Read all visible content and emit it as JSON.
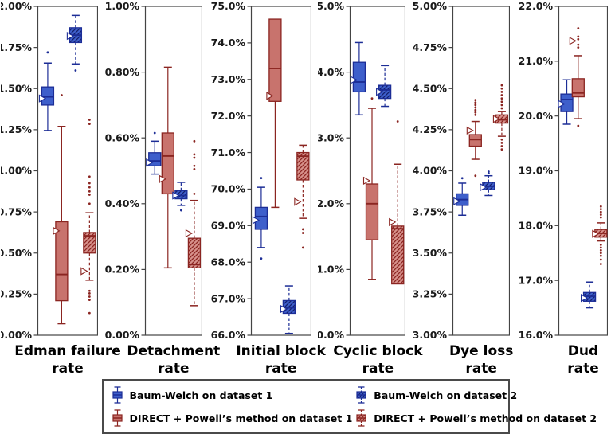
{
  "figure": {
    "background": "#ffffff",
    "axis_color": "#444444",
    "tick_label_color": "#1a1a1a"
  },
  "chart_data": {
    "type": "boxplot",
    "legend_position": "bottom",
    "grid": false,
    "styles": {
      "bw1": {
        "name": "Baum-Welch on dataset 1",
        "fill": "#3E5FCB",
        "edge": "#1C2D96",
        "hatch": false,
        "dashed": false
      },
      "dp1": {
        "name": "DIRECT + Powell’s method on dataset 1",
        "fill": "#C8736D",
        "edge": "#8B2521",
        "hatch": false,
        "dashed": false
      },
      "bw2": {
        "name": "Baum-Welch on dataset 2",
        "fill": "#3E5FCB",
        "edge": "#1C2D96",
        "hatch": true,
        "hatch_color": "#141F6B",
        "dashed": true
      },
      "dp2": {
        "name": "DIRECT + Powell’s method on dataset 2",
        "fill": "#D6908A",
        "edge": "#8B2521",
        "hatch": true,
        "hatch_color": "#8B2521",
        "dashed": true
      }
    },
    "legend": [
      {
        "style": "bw1",
        "label": "Baum-Welch on dataset 1"
      },
      {
        "style": "bw2",
        "label": "Baum-Welch on dataset 2"
      },
      {
        "style": "dp1",
        "label": "DIRECT + Powell’s method on dataset 1"
      },
      {
        "style": "dp2",
        "label": "DIRECT + Powell’s method on dataset 2"
      }
    ],
    "panels": [
      {
        "title": [
          "Edman failure",
          "rate"
        ],
        "ylim": [
          0.0,
          2.0
        ],
        "ytick_step": 0.25,
        "ytick_decimals": 2,
        "boxes": [
          {
            "series": "bw1",
            "whislo": 1.245,
            "q1": 1.4,
            "med": 1.45,
            "q3": 1.51,
            "whishi": 1.655,
            "mean": 1.44,
            "fliers": [
              1.72
            ]
          },
          {
            "series": "dp1",
            "whislo": 0.07,
            "q1": 0.21,
            "med": 0.37,
            "q3": 0.69,
            "whishi": 1.27,
            "mean": 0.635,
            "fliers": [
              1.46
            ]
          },
          {
            "series": "bw2",
            "whislo": 1.65,
            "q1": 1.78,
            "med": 1.825,
            "q3": 1.87,
            "whishi": 1.945,
            "mean": 1.82,
            "fliers": [
              1.61
            ]
          },
          {
            "series": "dp2",
            "whislo": 0.335,
            "q1": 0.5,
            "med": 0.605,
            "q3": 0.625,
            "whishi": 0.745,
            "mean": 0.39,
            "fliers": [
              1.31,
              1.285,
              0.965,
              0.925,
              0.9,
              0.875,
              0.855,
              0.8,
              0.27,
              0.255,
              0.235,
              0.215,
              0.135
            ]
          }
        ]
      },
      {
        "title": [
          "Detachment",
          "rate"
        ],
        "ylim": [
          0.0,
          1.0
        ],
        "ytick_step": 0.2,
        "ytick_decimals": 2,
        "boxes": [
          {
            "series": "bw1",
            "whislo": 0.49,
            "q1": 0.515,
            "med": 0.53,
            "q3": 0.555,
            "whishi": 0.59,
            "mean": 0.525,
            "fliers": [
              0.615
            ]
          },
          {
            "series": "dp1",
            "whislo": 0.205,
            "q1": 0.43,
            "med": 0.545,
            "q3": 0.615,
            "whishi": 0.815,
            "mean": 0.475,
            "fliers": []
          },
          {
            "series": "bw2",
            "whislo": 0.395,
            "q1": 0.415,
            "med": 0.425,
            "q3": 0.44,
            "whishi": 0.465,
            "mean": 0.425,
            "fliers": [
              0.38
            ]
          },
          {
            "series": "dp2",
            "whislo": 0.09,
            "q1": 0.205,
            "med": 0.215,
            "q3": 0.295,
            "whishi": 0.41,
            "mean": 0.31,
            "fliers": [
              0.59,
              0.55,
              0.54,
              0.515,
              0.505,
              0.43
            ]
          }
        ]
      },
      {
        "title": [
          "Initial block",
          "rate"
        ],
        "ylim": [
          66.0,
          75.0
        ],
        "ytick_step": 1.0,
        "ytick_decimals": 1,
        "boxes": [
          {
            "series": "bw1",
            "whislo": 68.4,
            "q1": 68.9,
            "med": 69.25,
            "q3": 69.5,
            "whishi": 70.05,
            "mean": 69.15,
            "fliers": [
              70.3,
              68.1
            ]
          },
          {
            "series": "dp1",
            "whislo": 69.5,
            "q1": 72.4,
            "med": 73.3,
            "q3": 74.65,
            "whishi": 74.65,
            "mean": 72.55,
            "fliers": []
          },
          {
            "series": "bw2",
            "whislo": 66.05,
            "q1": 66.6,
            "med": 66.75,
            "q3": 66.95,
            "whishi": 67.35,
            "mean": 66.72,
            "fliers": []
          },
          {
            "series": "dp2",
            "whislo": 69.2,
            "q1": 70.25,
            "med": 70.9,
            "q3": 71.0,
            "whishi": 71.2,
            "mean": 69.65,
            "fliers": [
              68.9,
              68.8,
              68.4
            ]
          }
        ]
      },
      {
        "title": [
          "Cyclic block",
          "rate"
        ],
        "ylim": [
          0.0,
          5.0
        ],
        "ytick_step": 1.0,
        "ytick_decimals": 1,
        "boxes": [
          {
            "series": "bw1",
            "whislo": 3.35,
            "q1": 3.7,
            "med": 3.85,
            "q3": 4.15,
            "whishi": 4.45,
            "mean": 3.88,
            "fliers": []
          },
          {
            "series": "dp1",
            "whislo": 0.85,
            "q1": 1.45,
            "med": 2.0,
            "q3": 2.3,
            "whishi": 3.45,
            "mean": 2.35,
            "fliers": [
              3.6
            ]
          },
          {
            "series": "bw2",
            "whislo": 3.48,
            "q1": 3.6,
            "med": 3.73,
            "q3": 3.8,
            "whishi": 4.1,
            "mean": 3.7,
            "fliers": []
          },
          {
            "series": "dp2",
            "whislo": 0.78,
            "q1": 0.78,
            "med": 1.62,
            "q3": 1.66,
            "whishi": 2.6,
            "mean": 1.72,
            "fliers": [
              3.25
            ]
          }
        ]
      },
      {
        "title": [
          "Dye loss",
          "rate"
        ],
        "ylim": [
          3.0,
          5.0
        ],
        "ytick_step": 0.25,
        "ytick_decimals": 2,
        "boxes": [
          {
            "series": "bw1",
            "whislo": 3.73,
            "q1": 3.79,
            "med": 3.825,
            "q3": 3.86,
            "whishi": 3.925,
            "mean": 3.815,
            "fliers": [
              3.955
            ]
          },
          {
            "series": "dp1",
            "whislo": 4.07,
            "q1": 4.15,
            "med": 4.19,
            "q3": 4.22,
            "whishi": 4.3,
            "mean": 4.245,
            "fliers": [
              4.43,
              4.415,
              4.4,
              4.385,
              4.37,
              4.355,
              4.34,
              3.97
            ]
          },
          {
            "series": "bw2",
            "whislo": 3.85,
            "q1": 3.885,
            "med": 3.905,
            "q3": 3.93,
            "whishi": 3.97,
            "mean": 3.9,
            "fliers": [
              3.995,
              3.985
            ]
          },
          {
            "series": "dp2",
            "whislo": 4.21,
            "q1": 4.29,
            "med": 4.31,
            "q3": 4.34,
            "whishi": 4.36,
            "mean": 4.315,
            "fliers": [
              4.52,
              4.5,
              4.48,
              4.46,
              4.44,
              4.42,
              4.4,
              4.38,
              4.19,
              4.17,
              4.15,
              4.13
            ]
          }
        ]
      },
      {
        "title": [
          "Dud",
          "rate"
        ],
        "ylim": [
          16.0,
          22.0
        ],
        "ytick_step": 1.0,
        "ytick_decimals": 1,
        "boxes": [
          {
            "series": "bw1",
            "whislo": 19.85,
            "q1": 20.08,
            "med": 20.3,
            "q3": 20.4,
            "whishi": 20.66,
            "mean": 20.22,
            "fliers": []
          },
          {
            "series": "dp1",
            "whislo": 19.95,
            "q1": 20.35,
            "med": 20.42,
            "q3": 20.68,
            "whishi": 21.1,
            "mean": 21.37,
            "fliers": [
              21.6,
              21.45,
              21.4,
              21.3,
              21.25,
              19.82
            ]
          },
          {
            "series": "bw2",
            "whislo": 16.5,
            "q1": 16.62,
            "med": 16.71,
            "q3": 16.78,
            "whishi": 16.97,
            "mean": 16.68,
            "fliers": []
          },
          {
            "series": "dp2",
            "whislo": 17.72,
            "q1": 17.79,
            "med": 17.86,
            "q3": 17.93,
            "whishi": 18.05,
            "mean": 17.85,
            "fliers": [
              18.35,
              18.3,
              18.25,
              18.2,
              18.15,
              17.65,
              17.6,
              17.55,
              17.5,
              17.45,
              17.38,
              17.3
            ]
          }
        ]
      }
    ]
  }
}
